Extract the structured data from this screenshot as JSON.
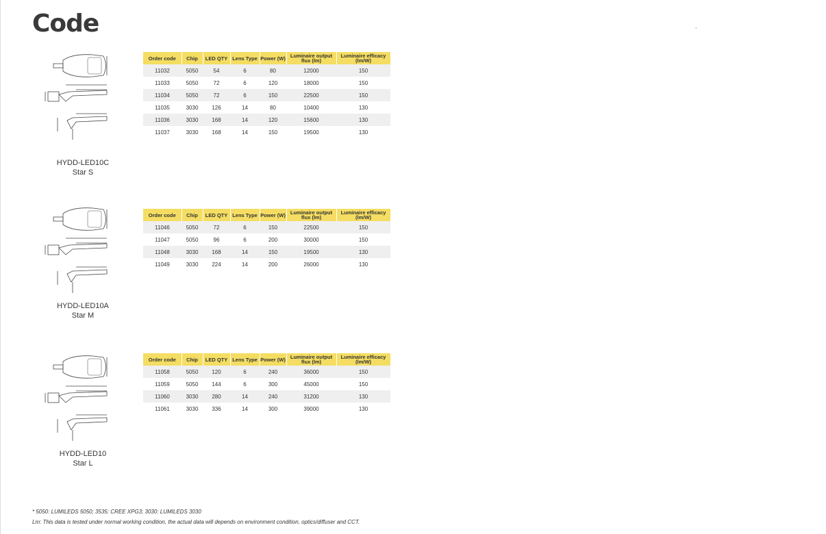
{
  "title": "Code",
  "corner_mark": ",",
  "columns": [
    "Order code",
    "Chip",
    "LED QTY",
    "Lens Type",
    "Power (W)",
    "Luminaire output flux (lm)",
    "Luminaire efficacy (lm/W)"
  ],
  "products": [
    {
      "model": "HYDD-LED10C",
      "name": "Star S",
      "rows": [
        [
          "11032",
          "5050",
          "54",
          "6",
          "80",
          "12000",
          "150"
        ],
        [
          "11033",
          "5050",
          "72",
          "6",
          "120",
          "18000",
          "150"
        ],
        [
          "11034",
          "5050",
          "72",
          "6",
          "150",
          "22500",
          "150"
        ],
        [
          "11035",
          "3030",
          "126",
          "14",
          "80",
          "10400",
          "130"
        ],
        [
          "11036",
          "3030",
          "168",
          "14",
          "120",
          "15600",
          "130"
        ],
        [
          "11037",
          "3030",
          "168",
          "14",
          "150",
          "19500",
          "130"
        ]
      ]
    },
    {
      "model": "HYDD-LED10A",
      "name": "Star M",
      "rows": [
        [
          "11046",
          "5050",
          "72",
          "6",
          "150",
          "22500",
          "150"
        ],
        [
          "11047",
          "5050",
          "96",
          "6",
          "200",
          "30000",
          "150"
        ],
        [
          "11048",
          "3030",
          "168",
          "14",
          "150",
          "19500",
          "130"
        ],
        [
          "11049",
          "3030",
          "224",
          "14",
          "200",
          "26000",
          "130"
        ]
      ]
    },
    {
      "model": "HYDD-LED10",
      "name": "Star L",
      "rows": [
        [
          "11058",
          "5050",
          "120",
          "6",
          "240",
          "36000",
          "150"
        ],
        [
          "11059",
          "5050",
          "144",
          "6",
          "300",
          "45000",
          "150"
        ],
        [
          "11060",
          "3030",
          "280",
          "14",
          "240",
          "31200",
          "130"
        ],
        [
          "11061",
          "3030",
          "336",
          "14",
          "300",
          "39000",
          "130"
        ]
      ]
    }
  ],
  "notes": [
    "* 5050: LUMILEDS 5050; 3535: CREE XPG3; 3030: LUMILEDS 3030",
    "Lm: This data is tested under normal working condition, the actual data will depends on environment condition, optics/diffuser and CCT."
  ],
  "colors": {
    "header": "#f4dd62",
    "stripe": "#efefef"
  }
}
